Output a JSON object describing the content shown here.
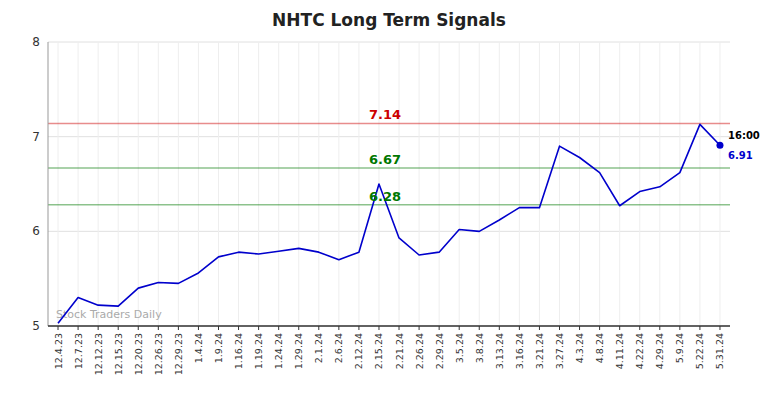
{
  "chart_data": {
    "type": "line",
    "title": "NHTC Long Term Signals",
    "categories": [
      "12.4.23",
      "12.7.23",
      "12.12.23",
      "12.15.23",
      "12.20.23",
      "12.26.23",
      "12.29.23",
      "1.4.24",
      "1.9.24",
      "1.16.24",
      "1.19.24",
      "1.24.24",
      "1.29.24",
      "2.1.24",
      "2.6.24",
      "2.12.24",
      "2.15.24",
      "2.21.24",
      "2.26.24",
      "2.29.24",
      "3.5.24",
      "3.8.24",
      "3.13.24",
      "3.16.24",
      "3.21.24",
      "3.27.24",
      "4.3.24",
      "4.8.24",
      "4.11.24",
      "4.22.24",
      "4.29.24",
      "5.9.24",
      "5.22.24",
      "5.31.24"
    ],
    "values": [
      5.03,
      5.3,
      5.22,
      5.21,
      5.4,
      5.46,
      5.45,
      5.56,
      5.73,
      5.78,
      5.76,
      5.79,
      5.82,
      5.78,
      5.7,
      5.78,
      6.5,
      5.93,
      5.75,
      5.78,
      6.02,
      6.0,
      6.12,
      6.25,
      6.25,
      6.9,
      6.78,
      6.62,
      6.27,
      6.42,
      6.47,
      6.62,
      7.13,
      6.91
    ],
    "color": "#0000cc",
    "ylim": [
      5.0,
      8.0
    ],
    "yticks": [
      5,
      6,
      7,
      8
    ],
    "grid": true,
    "reference_lines": [
      {
        "value": 7.14,
        "color": "#cc0000"
      },
      {
        "value": 6.67,
        "color": "#007700"
      },
      {
        "value": 6.28,
        "color": "#007700"
      }
    ],
    "last_price": 6.91,
    "annotations": [
      "Stock Traders Daily",
      "16:00"
    ]
  }
}
